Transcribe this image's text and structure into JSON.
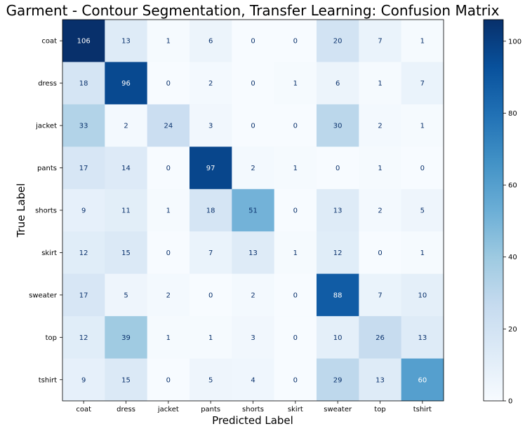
{
  "chart_data": {
    "type": "heatmap",
    "title": "Garment - Contour Segmentation, Transfer Learning: Confusion Matrix",
    "xlabel": "Predicted Label",
    "ylabel": "True Label",
    "x_categories": [
      "coat",
      "dress",
      "jacket",
      "pants",
      "shorts",
      "skirt",
      "sweater",
      "top",
      "tshirt"
    ],
    "y_categories": [
      "coat",
      "dress",
      "jacket",
      "pants",
      "shorts",
      "skirt",
      "sweater",
      "top",
      "tshirt"
    ],
    "values": [
      [
        106,
        13,
        1,
        6,
        0,
        0,
        20,
        7,
        1
      ],
      [
        18,
        96,
        0,
        2,
        0,
        1,
        6,
        1,
        7
      ],
      [
        33,
        2,
        24,
        3,
        0,
        0,
        30,
        2,
        1
      ],
      [
        17,
        14,
        0,
        97,
        2,
        1,
        0,
        1,
        0
      ],
      [
        9,
        11,
        1,
        18,
        51,
        0,
        13,
        2,
        5
      ],
      [
        12,
        15,
        0,
        7,
        13,
        1,
        12,
        0,
        1
      ],
      [
        17,
        5,
        2,
        0,
        2,
        0,
        88,
        7,
        10
      ],
      [
        12,
        39,
        1,
        1,
        3,
        0,
        10,
        26,
        13
      ],
      [
        9,
        15,
        0,
        5,
        4,
        0,
        29,
        13,
        60
      ]
    ],
    "colormap": "Blues",
    "colorbar": {
      "range": [
        0,
        106
      ],
      "ticks": [
        0,
        20,
        40,
        60,
        80,
        100
      ]
    },
    "grid": false,
    "legend": "colorbar-right"
  }
}
